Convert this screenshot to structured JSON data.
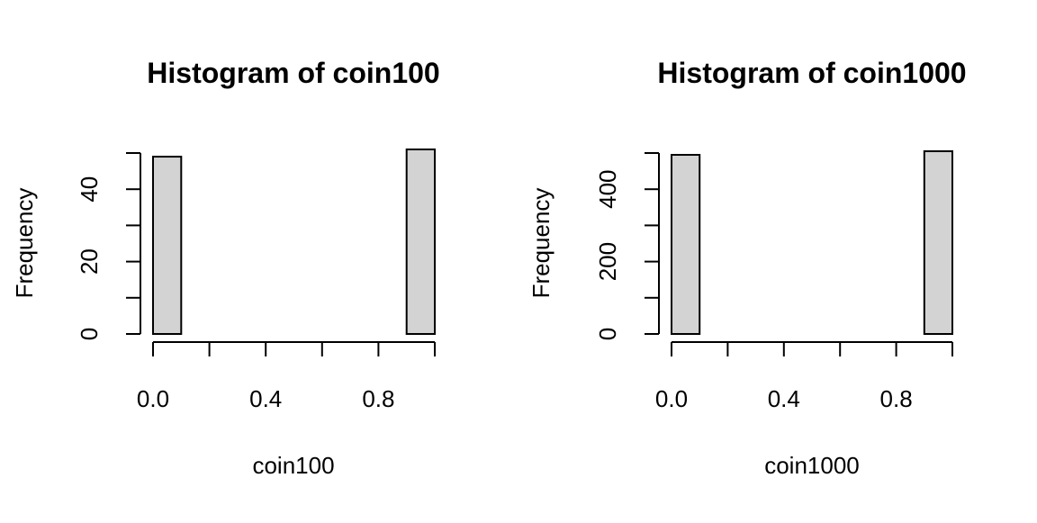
{
  "chart_data": [
    {
      "type": "bar",
      "title": "Histogram of coin100",
      "xlabel": "coin100",
      "ylabel": "Frequency",
      "bins": [
        {
          "from": 0.0,
          "to": 0.1,
          "count": 49
        },
        {
          "from": 0.1,
          "to": 0.2,
          "count": 0
        },
        {
          "from": 0.2,
          "to": 0.3,
          "count": 0
        },
        {
          "from": 0.3,
          "to": 0.4,
          "count": 0
        },
        {
          "from": 0.4,
          "to": 0.5,
          "count": 0
        },
        {
          "from": 0.5,
          "to": 0.6,
          "count": 0
        },
        {
          "from": 0.6,
          "to": 0.7,
          "count": 0
        },
        {
          "from": 0.7,
          "to": 0.8,
          "count": 0
        },
        {
          "from": 0.8,
          "to": 0.9,
          "count": 0
        },
        {
          "from": 0.9,
          "to": 1.0,
          "count": 51
        }
      ],
      "xlim": [
        0,
        1
      ],
      "ylim": [
        0,
        50
      ],
      "xticks": [
        0.0,
        0.2,
        0.4,
        0.6,
        0.8,
        1.0
      ],
      "xtick_labels": [
        "0.0",
        "0.4",
        "0.8"
      ],
      "yticks": [
        0,
        10,
        20,
        30,
        40,
        50
      ],
      "ytick_labels": [
        "0",
        "20",
        "40"
      ],
      "bar_color": "#d3d3d3",
      "grid": false
    },
    {
      "type": "bar",
      "title": "Histogram of coin1000",
      "xlabel": "coin1000",
      "ylabel": "Frequency",
      "bins": [
        {
          "from": 0.0,
          "to": 0.1,
          "count": 495
        },
        {
          "from": 0.1,
          "to": 0.2,
          "count": 0
        },
        {
          "from": 0.2,
          "to": 0.3,
          "count": 0
        },
        {
          "from": 0.3,
          "to": 0.4,
          "count": 0
        },
        {
          "from": 0.4,
          "to": 0.5,
          "count": 0
        },
        {
          "from": 0.5,
          "to": 0.6,
          "count": 0
        },
        {
          "from": 0.6,
          "to": 0.7,
          "count": 0
        },
        {
          "from": 0.7,
          "to": 0.8,
          "count": 0
        },
        {
          "from": 0.8,
          "to": 0.9,
          "count": 0
        },
        {
          "from": 0.9,
          "to": 1.0,
          "count": 505
        }
      ],
      "xlim": [
        0,
        1
      ],
      "ylim": [
        0,
        500
      ],
      "xticks": [
        0.0,
        0.2,
        0.4,
        0.6,
        0.8,
        1.0
      ],
      "xtick_labels": [
        "0.0",
        "0.4",
        "0.8"
      ],
      "yticks": [
        0,
        100,
        200,
        300,
        400,
        500
      ],
      "ytick_labels": [
        "0",
        "200",
        "400"
      ],
      "bar_color": "#d3d3d3",
      "grid": false
    }
  ]
}
